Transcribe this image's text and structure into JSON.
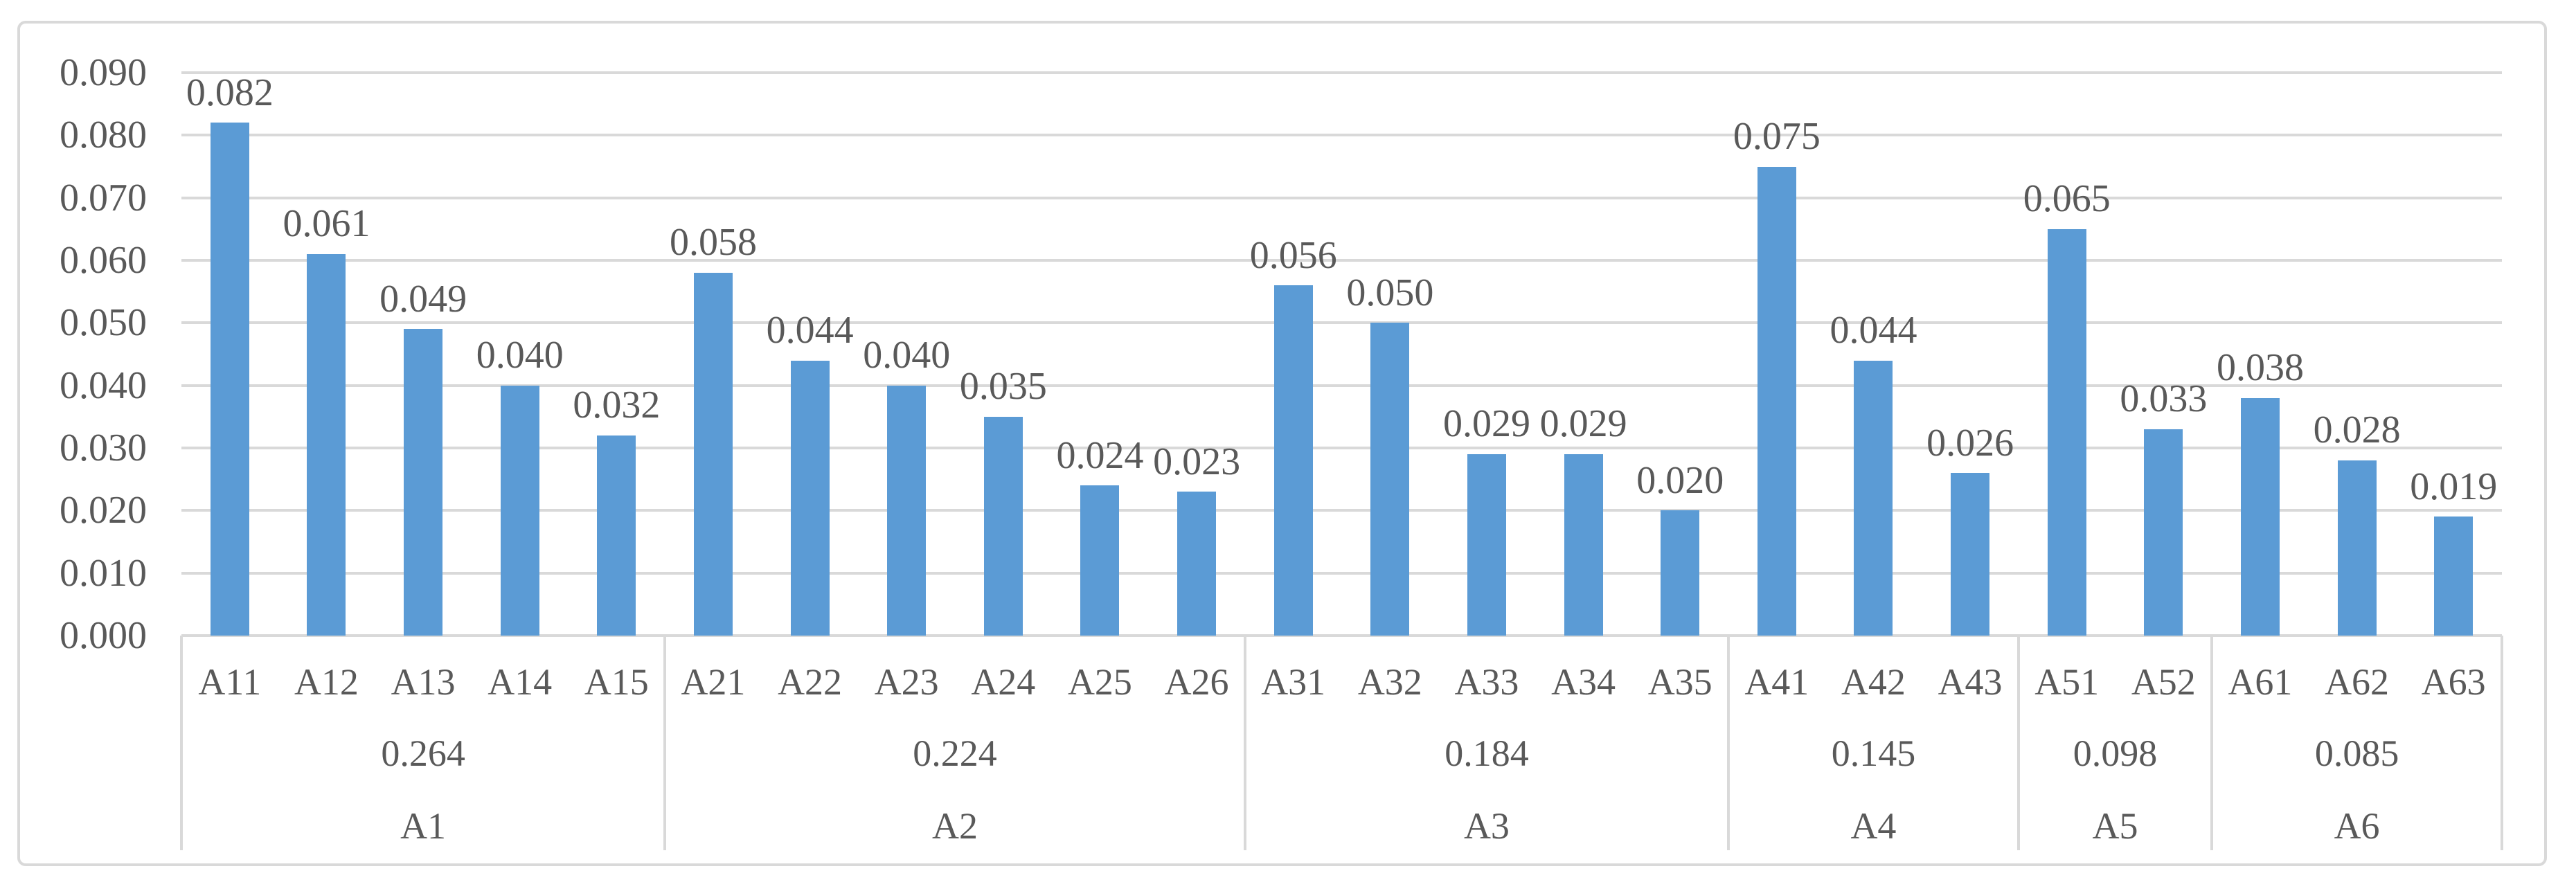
{
  "chart_data": {
    "type": "bar",
    "title": "",
    "legend": "none",
    "grid": "horizontal",
    "colors": {
      "bar": "#5B9BD5",
      "gridline": "#D9D9D9",
      "text": "#595959",
      "frame_border": "#D9D9D9"
    },
    "y_axis": {
      "min": 0.0,
      "max": 0.09,
      "step": 0.01,
      "tick_labels": [
        "0.090",
        "0.080",
        "0.070",
        "0.060",
        "0.050",
        "0.040",
        "0.030",
        "0.020",
        "0.010",
        "0.000"
      ]
    },
    "groups": [
      {
        "name": "A1",
        "total_label": "0.264",
        "bars": [
          {
            "label": "A11",
            "value": 0.082,
            "value_label": "0.082"
          },
          {
            "label": "A12",
            "value": 0.061,
            "value_label": "0.061"
          },
          {
            "label": "A13",
            "value": 0.049,
            "value_label": "0.049"
          },
          {
            "label": "A14",
            "value": 0.04,
            "value_label": "0.040"
          },
          {
            "label": "A15",
            "value": 0.032,
            "value_label": "0.032"
          }
        ]
      },
      {
        "name": "A2",
        "total_label": "0.224",
        "bars": [
          {
            "label": "A21",
            "value": 0.058,
            "value_label": "0.058"
          },
          {
            "label": "A22",
            "value": 0.044,
            "value_label": "0.044"
          },
          {
            "label": "A23",
            "value": 0.04,
            "value_label": "0.040"
          },
          {
            "label": "A24",
            "value": 0.035,
            "value_label": "0.035"
          },
          {
            "label": "A25",
            "value": 0.024,
            "value_label": "0.024"
          },
          {
            "label": "A26",
            "value": 0.023,
            "value_label": "0.023"
          }
        ]
      },
      {
        "name": "A3",
        "total_label": "0.184",
        "bars": [
          {
            "label": "A31",
            "value": 0.056,
            "value_label": "0.056"
          },
          {
            "label": "A32",
            "value": 0.05,
            "value_label": "0.050"
          },
          {
            "label": "A33",
            "value": 0.029,
            "value_label": "0.029"
          },
          {
            "label": "A34",
            "value": 0.029,
            "value_label": "0.029"
          },
          {
            "label": "A35",
            "value": 0.02,
            "value_label": "0.020"
          }
        ]
      },
      {
        "name": "A4",
        "total_label": "0.145",
        "bars": [
          {
            "label": "A41",
            "value": 0.075,
            "value_label": "0.075"
          },
          {
            "label": "A42",
            "value": 0.044,
            "value_label": "0.044"
          },
          {
            "label": "A43",
            "value": 0.026,
            "value_label": "0.026"
          }
        ]
      },
      {
        "name": "A5",
        "total_label": "0.098",
        "bars": [
          {
            "label": "A51",
            "value": 0.065,
            "value_label": "0.065"
          },
          {
            "label": "A52",
            "value": 0.033,
            "value_label": "0.033"
          }
        ]
      },
      {
        "name": "A6",
        "total_label": "0.085",
        "bars": [
          {
            "label": "A61",
            "value": 0.038,
            "value_label": "0.038"
          },
          {
            "label": "A62",
            "value": 0.028,
            "value_label": "0.028"
          },
          {
            "label": "A63",
            "value": 0.019,
            "value_label": "0.019"
          }
        ]
      }
    ]
  }
}
